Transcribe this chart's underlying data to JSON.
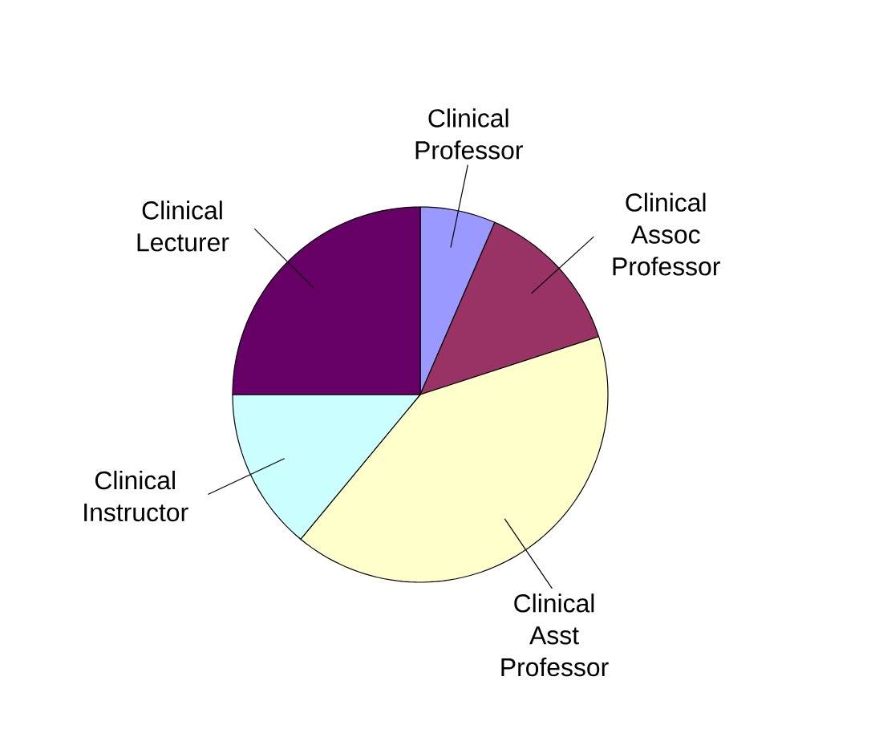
{
  "chart_data": {
    "type": "pie",
    "categories": [
      "Clinical Professor",
      "Clinical Assoc Professor",
      "Clinical Asst Professor",
      "Clinical Instructor",
      "Clinical Lecturer"
    ],
    "values": [
      6.5,
      13.5,
      41,
      14,
      25
    ],
    "colors": [
      "#9999ff",
      "#993366",
      "#ffffcc",
      "#ccffff",
      "#660066"
    ]
  }
}
